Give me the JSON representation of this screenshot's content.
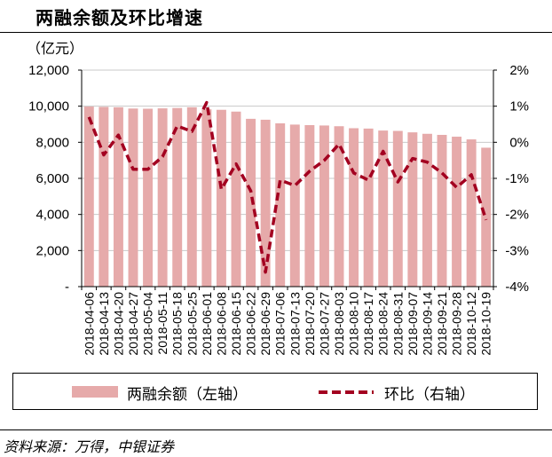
{
  "title": "两融余额及环比增速",
  "source": "资料来源：万得，中银证券",
  "chart_data": {
    "type": "bar",
    "title": "两融余额及环比增速",
    "left_axis_unit": "（亿元）",
    "left_axis_ticks": [
      "-",
      "2,000",
      "4,000",
      "6,000",
      "8,000",
      "10,000",
      "12,000"
    ],
    "right_axis_ticks": [
      "-4%",
      "-3%",
      "-2%",
      "-1%",
      "0%",
      "1%",
      "2%"
    ],
    "ylim_left": [
      0,
      12000
    ],
    "ylim_right": [
      -4,
      2
    ],
    "grid": "horizontal",
    "legend_position": "bottom",
    "categories": [
      "2018-04-06",
      "2018-04-13",
      "2018-04-20",
      "2018-04-27",
      "2018-05-04",
      "2018-05-11",
      "2018-05-18",
      "2018-05-25",
      "2018-06-01",
      "2018-06-08",
      "2018-06-15",
      "2018-06-22",
      "2018-06-29",
      "2018-07-06",
      "2018-07-13",
      "2018-07-20",
      "2018-07-27",
      "2018-08-03",
      "2018-08-10",
      "2018-08-17",
      "2018-08-24",
      "2018-08-31",
      "2018-09-07",
      "2018-09-14",
      "2018-09-21",
      "2018-09-28",
      "2018-10-12",
      "2018-10-19"
    ],
    "series": [
      {
        "name": "两融余额（左轴）",
        "type": "bar",
        "axis": "left",
        "color": "#e6aaaa",
        "values": [
          9980,
          9960,
          9940,
          9870,
          9860,
          9880,
          9900,
          9940,
          9830,
          9800,
          9700,
          9300,
          9250,
          9050,
          8980,
          8950,
          8930,
          8890,
          8780,
          8760,
          8650,
          8630,
          8550,
          8470,
          8410,
          8310,
          8160,
          7700
        ]
      },
      {
        "name": "环比（右轴）",
        "type": "line",
        "axis": "right",
        "color": "#a30020",
        "style": "dashed",
        "values": [
          0.7,
          -0.35,
          0.2,
          -0.75,
          -0.75,
          -0.4,
          0.45,
          0.3,
          1.1,
          -1.3,
          -0.6,
          -1.35,
          -3.6,
          -1.05,
          -1.2,
          -0.8,
          -0.5,
          -0.05,
          -0.85,
          -1.05,
          -0.25,
          -1.1,
          -0.45,
          -0.55,
          -0.85,
          -1.25,
          -0.9,
          -2.15
        ]
      }
    ]
  }
}
